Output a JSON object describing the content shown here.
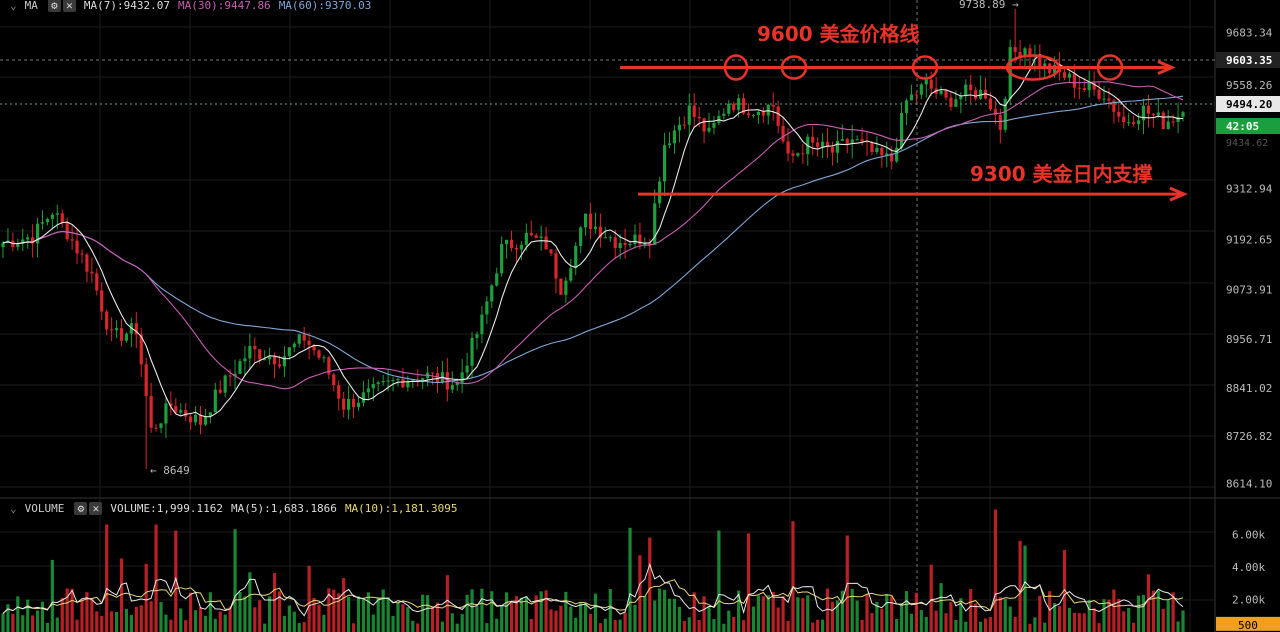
{
  "price_legend": {
    "indicator": "MA",
    "ma7": "MA(7):9432.07",
    "ma30": "MA(30):9447.86",
    "ma60": "MA(60):9370.03"
  },
  "volume_legend": {
    "indicator": "VOLUME",
    "volume": "VOLUME:1,999.1162",
    "ma5": "MA(5):1,683.1866",
    "ma10": "MA(10):1,181.3095"
  },
  "annotations": {
    "resistance": "9600 美金价格线",
    "support": "9300 美金日内支撑"
  },
  "markers": {
    "high_label": "9738.89 →",
    "low_label": "← 8649"
  },
  "price_axis": {
    "ticks": [
      "9683.34",
      "9558.26",
      "9312.94",
      "9192.65",
      "9073.91",
      "8956.71",
      "8841.02",
      "8726.82",
      "8614.10"
    ],
    "tag_crosshair": "9603.35",
    "tag_last": "9494.20",
    "tag_timer": "42:05",
    "tag_faint": "9434.62"
  },
  "volume_axis": {
    "ticks": [
      "6.00k",
      "4.00k",
      "2.00k"
    ],
    "tag_current": "500"
  },
  "colors": {
    "up": "#1e9e3c",
    "down": "#d9262c",
    "ma7": "#e8e8e8",
    "ma30": "#c85fb4",
    "ma60": "#7ea8d8",
    "annotation": "#e8332b",
    "tag_crosshair_bg": "#222222",
    "tag_last_bg": "#e8e8e8",
    "tag_timer_bg": "#1b9e3e",
    "tag_current_bg": "#f0a020"
  },
  "chart_data": {
    "type": "candlestick",
    "price_range": [
      8585,
      9760
    ],
    "volume_range": [
      0,
      7000
    ],
    "high": 9738.89,
    "low": 8649,
    "ma_lengths": [
      7,
      30,
      60
    ],
    "resistance_level": 9600,
    "support_level": 9300,
    "price_waypoints": [
      {
        "i": 0,
        "p": 9185
      },
      {
        "i": 6,
        "p": 9200
      },
      {
        "i": 10,
        "p": 9260
      },
      {
        "i": 13,
        "p": 9210
      },
      {
        "i": 18,
        "p": 9110
      },
      {
        "i": 22,
        "p": 8960
      },
      {
        "i": 27,
        "p": 8980
      },
      {
        "i": 30,
        "p": 8740
      },
      {
        "i": 34,
        "p": 8800
      },
      {
        "i": 40,
        "p": 8760
      },
      {
        "i": 44,
        "p": 8840
      },
      {
        "i": 50,
        "p": 8930
      },
      {
        "i": 56,
        "p": 8910
      },
      {
        "i": 61,
        "p": 8960
      },
      {
        "i": 65,
        "p": 8900
      },
      {
        "i": 69,
        "p": 8800
      },
      {
        "i": 73,
        "p": 8820
      },
      {
        "i": 80,
        "p": 8860
      },
      {
        "i": 86,
        "p": 8870
      },
      {
        "i": 92,
        "p": 8850
      },
      {
        "i": 97,
        "p": 9000
      },
      {
        "i": 101,
        "p": 9170
      },
      {
        "i": 106,
        "p": 9200
      },
      {
        "i": 110,
        "p": 9180
      },
      {
        "i": 113,
        "p": 9080
      },
      {
        "i": 118,
        "p": 9240
      },
      {
        "i": 124,
        "p": 9190
      },
      {
        "i": 127,
        "p": 9190
      },
      {
        "i": 131,
        "p": 9200
      },
      {
        "i": 134,
        "p": 9420
      },
      {
        "i": 139,
        "p": 9500
      },
      {
        "i": 143,
        "p": 9440
      },
      {
        "i": 147,
        "p": 9520
      },
      {
        "i": 152,
        "p": 9500
      },
      {
        "i": 156,
        "p": 9510
      },
      {
        "i": 159,
        "p": 9380
      },
      {
        "i": 163,
        "p": 9420
      },
      {
        "i": 168,
        "p": 9400
      },
      {
        "i": 172,
        "p": 9430
      },
      {
        "i": 177,
        "p": 9390
      },
      {
        "i": 180,
        "p": 9380
      },
      {
        "i": 183,
        "p": 9520
      },
      {
        "i": 187,
        "p": 9560
      },
      {
        "i": 191,
        "p": 9520
      },
      {
        "i": 195,
        "p": 9540
      },
      {
        "i": 199,
        "p": 9540
      },
      {
        "i": 202,
        "p": 9460
      },
      {
        "i": 204,
        "p": 9630
      },
      {
        "i": 207,
        "p": 9650
      },
      {
        "i": 211,
        "p": 9600
      },
      {
        "i": 215,
        "p": 9580
      },
      {
        "i": 219,
        "p": 9550
      },
      {
        "i": 223,
        "p": 9540
      },
      {
        "i": 227,
        "p": 9470
      },
      {
        "i": 231,
        "p": 9500
      },
      {
        "i": 235,
        "p": 9470
      },
      {
        "i": 239,
        "p": 9494
      }
    ]
  }
}
